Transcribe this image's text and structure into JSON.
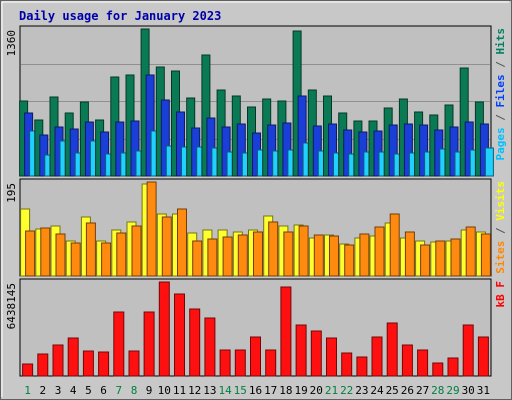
{
  "chart_data": {
    "type": "bar",
    "title": "Daily usage for January 2023",
    "days": [
      "1",
      "2",
      "3",
      "4",
      "5",
      "6",
      "7",
      "8",
      "9",
      "10",
      "11",
      "12",
      "13",
      "14",
      "15",
      "16",
      "17",
      "18",
      "19",
      "20",
      "21",
      "22",
      "23",
      "24",
      "25",
      "26",
      "27",
      "28",
      "29",
      "30",
      "31"
    ],
    "weekend_days": [
      "1",
      "7",
      "8",
      "14",
      "15",
      "21",
      "22",
      "28",
      "29"
    ],
    "panels": [
      {
        "id": "requests",
        "max_label": "1360",
        "ymax": 1360,
        "legend": [
          {
            "text": "Pages",
            "color": "#00c0ff"
          },
          {
            "text": " / ",
            "color": "#555555"
          },
          {
            "text": "Files",
            "color": "#0040ff"
          },
          {
            "text": " / ",
            "color": "#555555"
          },
          {
            "text": "Hits",
            "color": "#008060"
          }
        ],
        "series": [
          {
            "name": "Hits",
            "color": "#0a7a55",
            "values": [
              690,
              521,
              734,
              580,
              680,
              516,
              915,
              939,
              1360,
              1005,
              976,
              721,
              1121,
              795,
              740,
              641,
              712,
              695,
              1343,
              795,
              740,
              582,
              512,
              508,
              628,
              715,
              596,
              562,
              661,
              997,
              689
            ]
          },
          {
            "name": "Files",
            "color": "#1a3ed8",
            "values": [
              587,
              380,
              456,
              433,
              503,
              405,
              503,
              513,
              930,
              701,
              591,
              444,
              532,
              453,
              477,
              399,
              472,
              489,
              736,
              465,
              480,
              424,
              406,
              416,
              473,
              478,
              469,
              428,
              456,
              495,
              479
            ]
          },
          {
            "name": "Pages",
            "color": "#20d0ff",
            "values": [
              419,
              190,
              328,
              217,
              320,
              206,
              211,
              228,
              416,
              277,
              267,
              267,
              256,
              220,
              210,
              239,
              231,
              242,
              305,
              228,
              217,
              206,
              218,
              223,
              206,
              212,
              220,
              252,
              220,
              240,
              261
            ]
          }
        ]
      },
      {
        "id": "visits",
        "max_label": "195",
        "ymax": 195,
        "legend": [
          {
            "text": "Sites",
            "color": "#ff8800"
          },
          {
            "text": " / ",
            "color": "#555555"
          },
          {
            "text": "Visits",
            "color": "#ffff00"
          }
        ],
        "series": [
          {
            "name": "Visits",
            "color": "#ffff30",
            "values": [
              138,
              97,
              103,
              72,
              122,
              72,
              95,
              111,
              191,
              128,
              128,
              90,
              95,
              95,
              91,
              95,
              125,
              104,
              105,
              79,
              86,
              67,
              78,
              84,
              110,
              78,
              73,
              71,
              73,
              95,
              91
            ]
          },
          {
            "name": "Sites",
            "color": "#ff8a10",
            "values": [
              93,
              100,
              88,
              68,
              109,
              69,
              90,
              103,
              195,
              123,
              140,
              72,
              76,
              81,
              85,
              91,
              113,
              92,
              103,
              85,
              83,
              64,
              87,
              102,
              128,
              92,
              65,
              73,
              77,
              101,
              88
            ]
          }
        ]
      },
      {
        "id": "kbytes",
        "max_label": "6438145",
        "ymax": 6438145,
        "legend": [
          {
            "text": "kB F",
            "color": "#ff0000"
          }
        ],
        "series": [
          {
            "name": "kB F",
            "color": "#ff1010",
            "values": [
              795000,
              1540000,
              2136000,
              2607000,
              1740000,
              1620000,
              4374000,
              1710000,
              4374000,
              6438145,
              5590000,
              4560000,
              3960000,
              1800000,
              1800000,
              2670000,
              1800000,
              6106000,
              3460000,
              3070000,
              2584000,
              1580000,
              1320000,
              2660000,
              3650000,
              2136000,
              1800000,
              866000,
              1260000,
              3520000,
              2690000
            ]
          }
        ]
      }
    ]
  }
}
